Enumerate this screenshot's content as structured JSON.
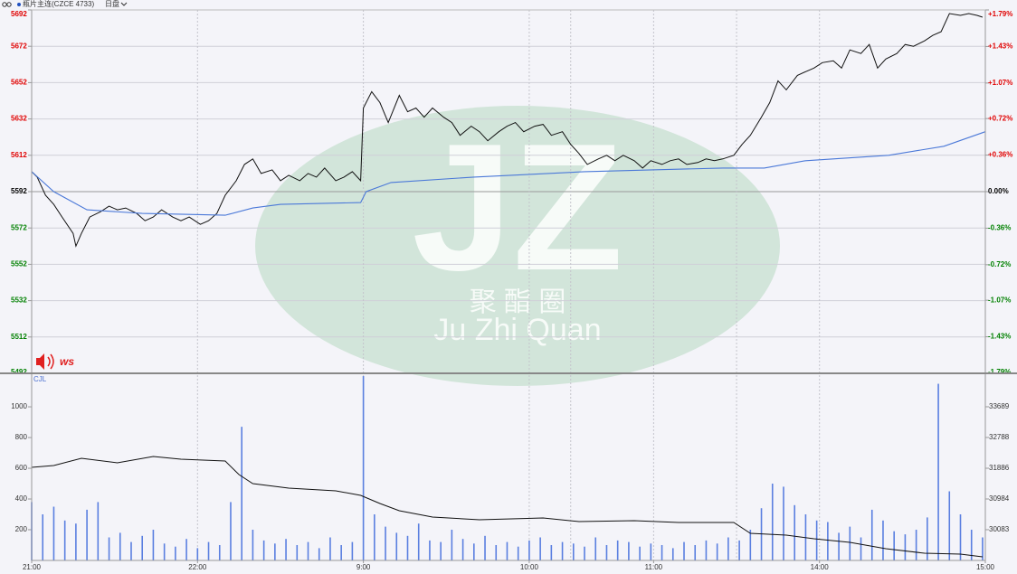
{
  "header": {
    "symbol": "瓶片主连(CZCE 4733)",
    "session": "日盘"
  },
  "watermark": {
    "logo": "JZ",
    "chinese": "聚 酯 圈",
    "pinyin": "Ju Zhi Quan"
  },
  "badge": "ws",
  "chart_data": [
    {
      "type": "line",
      "xlim": [
        0,
        345
      ],
      "ylim": [
        5492,
        5692
      ],
      "yticks": [
        5692,
        5672,
        5652,
        5632,
        5612,
        5592,
        5572,
        5552,
        5532,
        5512,
        5492
      ],
      "y2lim": [
        -1.79,
        1.79
      ],
      "y2ticks": [
        {
          "value": 1.79,
          "label": "+1.79%"
        },
        {
          "value": 1.43,
          "label": "+1.43%"
        },
        {
          "value": 1.07,
          "label": "+1.07%"
        },
        {
          "value": 0.72,
          "label": "+0.72%"
        },
        {
          "value": 0.36,
          "label": "+0.36%"
        },
        {
          "value": 0,
          "label": "0.00%"
        },
        {
          "value": -0.36,
          "label": "-0.36%"
        },
        {
          "value": -0.72,
          "label": "-0.72%"
        },
        {
          "value": -1.07,
          "label": "-1.07%"
        },
        {
          "value": -1.43,
          "label": "-1.43%"
        },
        {
          "value": -1.79,
          "label": "-1.79%"
        }
      ],
      "baseline": 5592,
      "up_color": "#e00000",
      "down_color": "#008000",
      "grid": true,
      "series": [
        {
          "color": "#111111",
          "x": [
            0,
            2,
            5,
            8,
            11,
            15,
            16,
            18,
            21,
            25,
            28,
            31,
            34,
            38,
            41,
            44,
            47,
            51,
            54,
            57,
            61,
            64,
            67,
            70,
            74,
            77,
            80,
            83,
            87,
            90,
            93,
            97,
            100,
            103,
            106,
            110,
            113,
            116,
            119,
            120,
            123,
            126,
            129,
            133,
            136,
            139,
            142,
            145,
            149,
            152,
            155,
            159,
            162,
            165,
            169,
            172,
            175,
            178,
            182,
            185,
            188,
            192,
            195,
            198,
            201,
            205,
            208,
            211,
            214,
            218,
            221,
            224,
            228,
            231,
            234,
            237,
            241,
            244,
            247,
            250,
            254,
            257,
            260,
            264,
            267,
            270,
            273,
            277,
            280,
            283,
            286,
            290,
            293,
            296,
            300,
            303,
            306,
            309,
            313,
            316,
            319,
            323,
            326,
            329,
            332,
            336,
            339,
            342,
            344
          ],
          "values": [
            5603,
            5600,
            5590,
            5585,
            5578,
            5569,
            5562,
            5569,
            5578,
            5581,
            5584,
            5582,
            5583,
            5580,
            5576,
            5578,
            5582,
            5578,
            5576,
            5578,
            5574,
            5576,
            5580,
            5590,
            5598,
            5607,
            5610,
            5602,
            5604,
            5598,
            5601,
            5598,
            5602,
            5600,
            5605,
            5598,
            5600,
            5603,
            5598,
            5638,
            5647,
            5641,
            5630,
            5645,
            5636,
            5638,
            5633,
            5638,
            5633,
            5630,
            5623,
            5628,
            5625,
            5620,
            5625,
            5628,
            5630,
            5625,
            5628,
            5629,
            5623,
            5625,
            5618,
            5613,
            5607,
            5610,
            5612,
            5609,
            5612,
            5609,
            5605,
            5609,
            5607,
            5609,
            5610,
            5607,
            5608,
            5610,
            5609,
            5610,
            5612,
            5618,
            5623,
            5633,
            5641,
            5653,
            5648,
            5656,
            5658,
            5660,
            5663,
            5664,
            5660,
            5670,
            5668,
            5673,
            5660,
            5665,
            5668,
            5673,
            5672,
            5675,
            5678,
            5680,
            5690,
            5689,
            5690,
            5689,
            5688
          ]
        },
        {
          "color": "#4a78d8",
          "x": [
            0,
            8,
            20,
            40,
            70,
            80,
            90,
            119,
            121,
            130,
            160,
            200,
            250,
            265,
            280,
            310,
            330,
            345
          ],
          "values": [
            5603,
            5592,
            5582,
            5580,
            5579,
            5583,
            5585,
            5586,
            5592,
            5597,
            5600,
            5603,
            5605,
            5605,
            5609,
            5612,
            5617,
            5625
          ]
        }
      ]
    },
    {
      "type": "bar",
      "label": "CJL",
      "xlim": [
        0,
        345
      ],
      "xticks": [
        {
          "value": 0,
          "label": "21:00"
        },
        {
          "value": 60,
          "label": "22:00"
        },
        {
          "value": 120,
          "label": "9:00"
        },
        {
          "value": 180,
          "label": "10:00"
        },
        {
          "value": 225,
          "label": "11:00"
        },
        {
          "value": 285,
          "label": "14:00"
        },
        {
          "value": 345,
          "label": "15:00"
        }
      ],
      "session_breaks": [
        195,
        255
      ],
      "ylim": [
        0,
        1218
      ],
      "yticks": [
        1000,
        800,
        600,
        400,
        200
      ],
      "y2lim": [
        29181,
        34670
      ],
      "y2ticks": [
        33689,
        32788,
        31886,
        30984,
        30083
      ],
      "series": [
        {
          "type": "bar",
          "color": "#5a7fe0",
          "x": [
            0,
            4,
            8,
            12,
            16,
            20,
            24,
            28,
            32,
            36,
            40,
            44,
            48,
            52,
            56,
            60,
            64,
            68,
            72,
            76,
            80,
            84,
            88,
            92,
            96,
            100,
            104,
            108,
            112,
            116,
            120,
            124,
            128,
            132,
            136,
            140,
            144,
            148,
            152,
            156,
            160,
            164,
            168,
            172,
            176,
            180,
            184,
            188,
            192,
            196,
            200,
            204,
            208,
            212,
            216,
            220,
            224,
            228,
            232,
            236,
            240,
            244,
            248,
            252,
            256,
            260,
            264,
            268,
            272,
            276,
            280,
            284,
            288,
            292,
            296,
            300,
            304,
            308,
            312,
            316,
            320,
            324,
            328,
            332,
            336,
            340,
            344
          ],
          "values": [
            380,
            300,
            350,
            260,
            240,
            330,
            380,
            150,
            180,
            120,
            160,
            200,
            110,
            90,
            140,
            80,
            120,
            100,
            380,
            870,
            200,
            130,
            110,
            140,
            100,
            120,
            80,
            150,
            100,
            120,
            1200,
            300,
            220,
            180,
            160,
            240,
            130,
            120,
            200,
            140,
            110,
            160,
            100,
            120,
            90,
            130,
            150,
            100,
            120,
            110,
            90,
            150,
            100,
            130,
            120,
            90,
            110,
            100,
            80,
            120,
            100,
            130,
            110,
            150,
            130,
            200,
            340,
            500,
            480,
            360,
            300,
            260,
            250,
            180,
            220,
            150,
            330,
            260,
            190,
            170,
            200,
            280,
            1150,
            450,
            300,
            200,
            150
          ]
        },
        {
          "type": "line",
          "axis": "y2",
          "color": "#111111",
          "x": [
            0,
            8,
            18,
            31,
            44,
            54,
            70,
            75,
            80,
            93,
            110,
            119,
            126,
            133,
            145,
            162,
            185,
            198,
            218,
            234,
            254,
            260,
            273,
            283,
            296,
            309,
            323,
            336,
            344
          ],
          "values": [
            31912,
            31965,
            32177,
            32044,
            32230,
            32150,
            32097,
            31700,
            31435,
            31302,
            31223,
            31090,
            30852,
            30640,
            30454,
            30375,
            30428,
            30322,
            30348,
            30295,
            30295,
            29977,
            29924,
            29818,
            29712,
            29526,
            29394,
            29367,
            29287
          ]
        }
      ]
    }
  ]
}
